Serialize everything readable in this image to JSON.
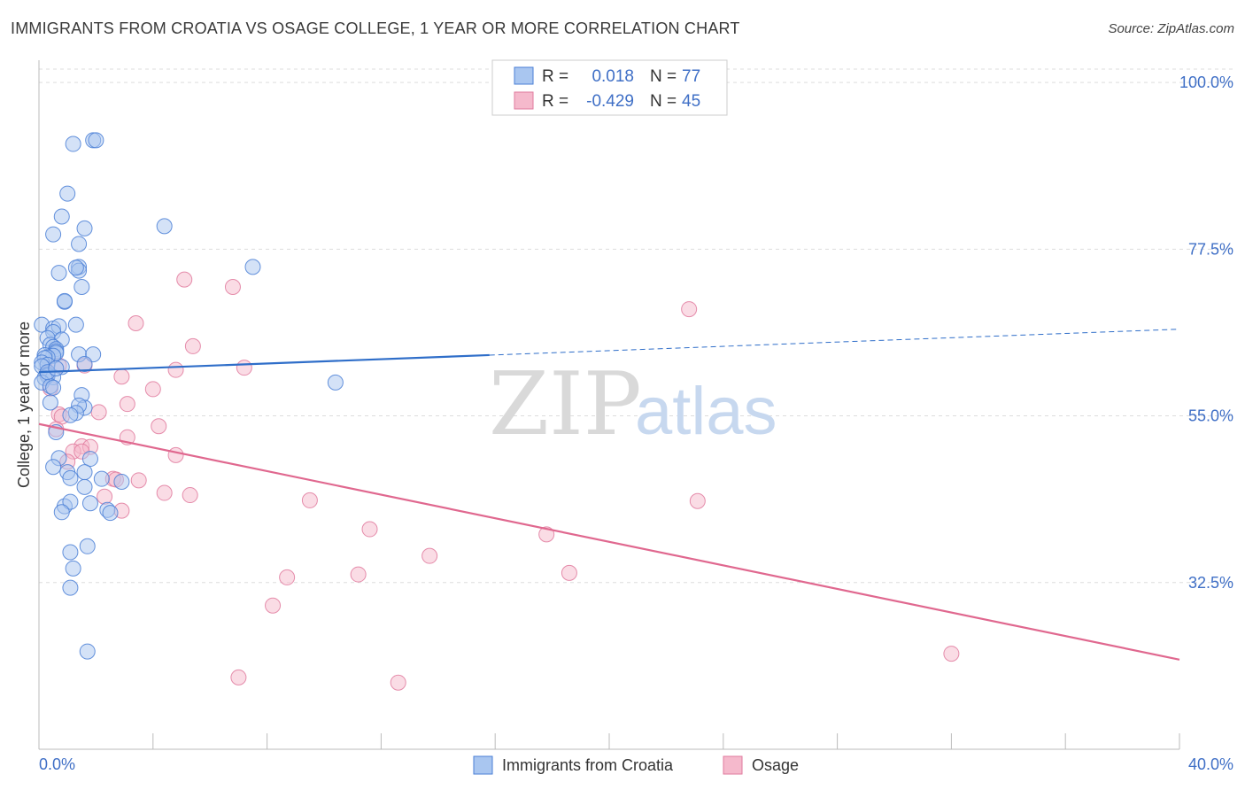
{
  "title": "IMMIGRANTS FROM CROATIA VS OSAGE COLLEGE, 1 YEAR OR MORE CORRELATION CHART",
  "source": "Source: ZipAtlas.com",
  "watermark": {
    "zip": "ZIP",
    "atlas": "atlas"
  },
  "colors": {
    "blue": "#4a7fd6",
    "blue_fill": "#a9c6f0",
    "blue_line": "#2f6ec9",
    "pink": "#e07a9e",
    "pink_fill": "#f5b9cc",
    "pink_line": "#e0688f",
    "tick_text": "#3f6fc6",
    "grid": "#dddddd"
  },
  "legend": {
    "r_label": "R =",
    "n_label": "N =",
    "rows": [
      {
        "r": "0.018",
        "n": "77",
        "series": "blue"
      },
      {
        "r": "-0.429",
        "n": "45",
        "series": "pink"
      }
    ]
  },
  "chart_data": {
    "type": "scatter",
    "title": "IMMIGRANTS FROM CROATIA VS OSAGE COLLEGE, 1 YEAR OR MORE CORRELATION CHART",
    "xlabel": "",
    "ylabel": "College, 1 year or more",
    "xlim": [
      0,
      40
    ],
    "ylim": [
      10,
      103
    ],
    "x_tick_labels": [
      "0.0%",
      "40.0%"
    ],
    "y_ticks": [
      32.5,
      55.0,
      77.5,
      100.0
    ],
    "y_tick_labels": [
      "32.5%",
      "55.0%",
      "77.5%",
      "100.0%"
    ],
    "series": [
      {
        "name": "Immigrants from Croatia",
        "color": "blue",
        "r": 0.018,
        "n": 77,
        "trend": {
          "x0": 0,
          "y0": 60.9,
          "x1": 15.8,
          "y1": 63.2,
          "x_dash_end": 40,
          "y_dash_end": 66.7
        },
        "points": [
          [
            1.2,
            91.7
          ],
          [
            1.9,
            92.2
          ],
          [
            2.0,
            92.2
          ],
          [
            1.0,
            85.0
          ],
          [
            0.8,
            81.9
          ],
          [
            0.5,
            79.5
          ],
          [
            1.6,
            80.3
          ],
          [
            1.4,
            78.2
          ],
          [
            4.4,
            80.6
          ],
          [
            1.4,
            75.1
          ],
          [
            1.4,
            74.6
          ],
          [
            0.7,
            74.3
          ],
          [
            1.3,
            75.0
          ],
          [
            7.5,
            75.1
          ],
          [
            1.5,
            72.4
          ],
          [
            0.9,
            70.4
          ],
          [
            0.9,
            70.5
          ],
          [
            0.1,
            67.3
          ],
          [
            0.5,
            66.8
          ],
          [
            0.7,
            67.1
          ],
          [
            0.5,
            66.3
          ],
          [
            1.3,
            67.3
          ],
          [
            0.3,
            65.5
          ],
          [
            0.8,
            65.3
          ],
          [
            0.4,
            64.6
          ],
          [
            0.5,
            64.3
          ],
          [
            0.6,
            64.0
          ],
          [
            0.6,
            63.7
          ],
          [
            0.6,
            63.5
          ],
          [
            0.5,
            63.1
          ],
          [
            0.2,
            63.2
          ],
          [
            1.4,
            63.3
          ],
          [
            1.9,
            63.3
          ],
          [
            0.3,
            62.9
          ],
          [
            0.2,
            62.8
          ],
          [
            0.1,
            62.2
          ],
          [
            0.3,
            61.9
          ],
          [
            0.1,
            61.7
          ],
          [
            0.8,
            61.6
          ],
          [
            1.6,
            62.0
          ],
          [
            0.3,
            60.6
          ],
          [
            0.3,
            60.4
          ],
          [
            0.5,
            60.2
          ],
          [
            0.2,
            60.1
          ],
          [
            0.1,
            59.5
          ],
          [
            0.4,
            59.0
          ],
          [
            0.5,
            58.8
          ],
          [
            10.4,
            59.5
          ],
          [
            1.5,
            57.8
          ],
          [
            0.4,
            56.8
          ],
          [
            1.6,
            56.1
          ],
          [
            1.4,
            56.4
          ],
          [
            1.3,
            55.4
          ],
          [
            1.1,
            55.1
          ],
          [
            0.6,
            52.8
          ],
          [
            0.7,
            49.3
          ],
          [
            1.8,
            49.2
          ],
          [
            0.5,
            48.1
          ],
          [
            1.0,
            47.4
          ],
          [
            1.6,
            47.4
          ],
          [
            1.1,
            46.6
          ],
          [
            2.2,
            46.5
          ],
          [
            2.9,
            46.1
          ],
          [
            1.6,
            45.4
          ],
          [
            1.8,
            43.2
          ],
          [
            0.9,
            42.8
          ],
          [
            1.1,
            43.4
          ],
          [
            2.4,
            42.3
          ],
          [
            2.5,
            41.9
          ],
          [
            0.8,
            42.0
          ],
          [
            1.7,
            37.4
          ],
          [
            1.1,
            36.6
          ],
          [
            1.2,
            34.4
          ],
          [
            1.1,
            31.8
          ],
          [
            1.7,
            23.2
          ],
          [
            0.3,
            60.9
          ],
          [
            0.6,
            61.4
          ]
        ]
      },
      {
        "name": "Osage",
        "color": "pink",
        "r": -0.429,
        "n": 45,
        "trend": {
          "x0": 0,
          "y0": 53.9,
          "x1": 40,
          "y1": 22.1
        },
        "points": [
          [
            5.1,
            73.4
          ],
          [
            6.8,
            72.4
          ],
          [
            22.8,
            69.4
          ],
          [
            3.4,
            67.5
          ],
          [
            5.4,
            64.4
          ],
          [
            0.3,
            60.7
          ],
          [
            4.8,
            61.2
          ],
          [
            7.2,
            61.5
          ],
          [
            0.7,
            61.8
          ],
          [
            1.6,
            61.8
          ],
          [
            2.9,
            60.3
          ],
          [
            4.0,
            58.6
          ],
          [
            0.4,
            58.7
          ],
          [
            3.1,
            56.6
          ],
          [
            2.1,
            55.5
          ],
          [
            0.7,
            55.2
          ],
          [
            0.8,
            54.9
          ],
          [
            0.6,
            53.2
          ],
          [
            4.2,
            53.6
          ],
          [
            3.1,
            52.1
          ],
          [
            1.5,
            50.9
          ],
          [
            1.8,
            50.8
          ],
          [
            1.2,
            50.2
          ],
          [
            1.5,
            50.2
          ],
          [
            4.8,
            49.7
          ],
          [
            1.0,
            48.8
          ],
          [
            2.6,
            46.5
          ],
          [
            2.7,
            46.4
          ],
          [
            3.5,
            46.3
          ],
          [
            4.4,
            44.6
          ],
          [
            5.3,
            44.3
          ],
          [
            2.3,
            44.1
          ],
          [
            9.5,
            43.6
          ],
          [
            23.1,
            43.5
          ],
          [
            2.9,
            42.2
          ],
          [
            11.6,
            39.7
          ],
          [
            17.8,
            39.0
          ],
          [
            13.7,
            36.1
          ],
          [
            18.6,
            33.8
          ],
          [
            11.2,
            33.6
          ],
          [
            8.7,
            33.2
          ],
          [
            8.2,
            29.4
          ],
          [
            32.0,
            22.9
          ],
          [
            7.0,
            19.7
          ],
          [
            12.6,
            19.0
          ]
        ]
      }
    ],
    "legend_entries": [
      "Immigrants from Croatia",
      "Osage"
    ]
  }
}
